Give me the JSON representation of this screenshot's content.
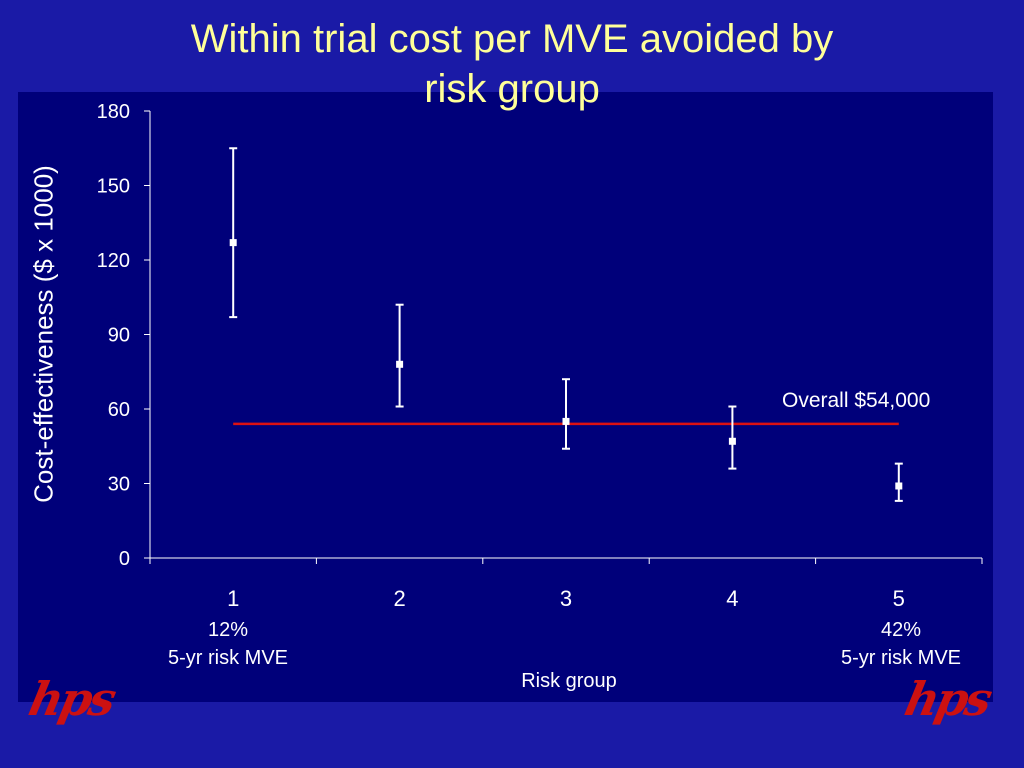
{
  "slide": {
    "title_line1": "Within trial cost per MVE avoided by",
    "title_line2": "risk group",
    "logo_text": "hps"
  },
  "colors": {
    "background": "#1a1aa6",
    "plot_area": "#00007a",
    "title": "#ffff99",
    "text": "#ffffff",
    "reference_line": "#dd1111",
    "logo": "#cc1111"
  },
  "annotations": {
    "overall_label": "Overall $54,000",
    "group1_note_pct": "12%",
    "group1_note_desc": "5-yr risk MVE",
    "group5_note_pct": "42%",
    "group5_note_desc": "5-yr risk MVE"
  },
  "chart_data": {
    "type": "scatter",
    "title": "Within trial cost per MVE avoided by risk group",
    "xlabel": "Risk group",
    "ylabel": "Cost-effectiveness ($ x 1000)",
    "categories": [
      "1",
      "2",
      "3",
      "4",
      "5"
    ],
    "yticks": [
      0,
      30,
      60,
      90,
      120,
      150,
      180
    ],
    "ylim": [
      0,
      180
    ],
    "grid": false,
    "series": [
      {
        "values": [
          127,
          78,
          55,
          47,
          29
        ],
        "lower": [
          97,
          61,
          44,
          36,
          23
        ],
        "upper": [
          165,
          102,
          72,
          61,
          38
        ]
      }
    ],
    "reference_line": {
      "value": 54,
      "from": "1",
      "to": "5",
      "label": "Overall $54,000"
    }
  }
}
